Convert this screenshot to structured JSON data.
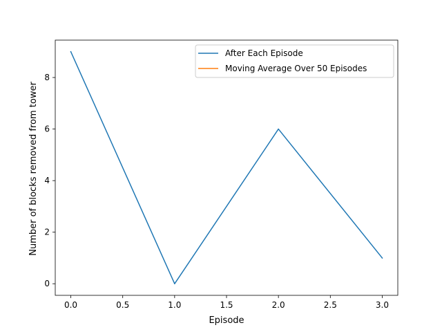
{
  "chart_data": {
    "type": "line",
    "title": "",
    "xlabel": "Episode",
    "ylabel": "Number of blocks removed from tower",
    "xlim": [
      -0.15,
      3.15
    ],
    "ylim": [
      -0.45,
      9.45
    ],
    "xticks": [
      0.0,
      0.5,
      1.0,
      1.5,
      2.0,
      2.5,
      3.0
    ],
    "xtick_labels": [
      "0.0",
      "0.5",
      "1.0",
      "1.5",
      "2.0",
      "2.5",
      "3.0"
    ],
    "yticks": [
      0,
      2,
      4,
      6,
      8
    ],
    "ytick_labels": [
      "0",
      "2",
      "4",
      "6",
      "8"
    ],
    "grid": false,
    "legend_position": "top-right",
    "series": [
      {
        "name": "After Each Episode",
        "color": "#1f77b4",
        "x": [
          0,
          1,
          2,
          3
        ],
        "y": [
          9,
          0,
          6,
          1
        ]
      },
      {
        "name": "Moving Average Over 50 Episodes",
        "color": "#ff7f0e",
        "x": [],
        "y": []
      }
    ]
  }
}
